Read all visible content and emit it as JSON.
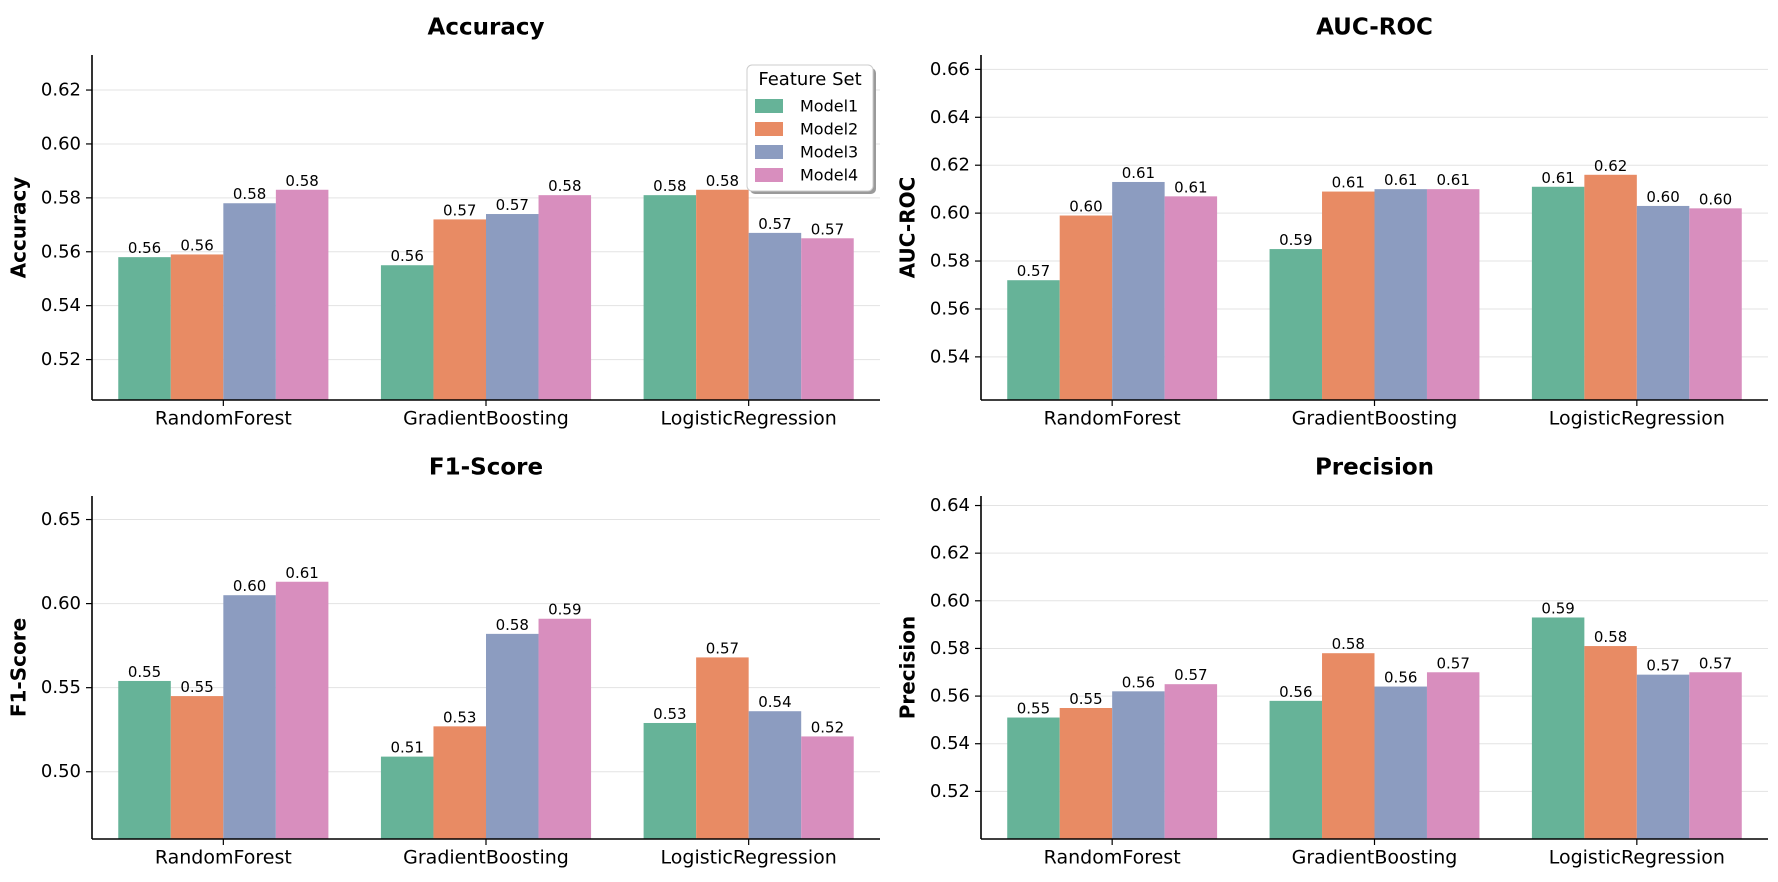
{
  "figure": {
    "legend": {
      "title": "Feature Set",
      "placement": "upper-right of first panel",
      "entries": [
        "Model1",
        "Model2",
        "Model3",
        "Model4"
      ]
    },
    "colors": [
      "#66b398",
      "#e88b64",
      "#8c9cc0",
      "#d88ebe"
    ]
  },
  "chart_data": [
    {
      "type": "bar",
      "title": "Accuracy",
      "xlabel": "",
      "ylabel": "Accuracy",
      "categories": [
        "RandomForest",
        "GradientBoosting",
        "LogisticRegression"
      ],
      "ylim": [
        0.505,
        0.633
      ],
      "yticks": [
        0.52,
        0.54,
        0.56,
        0.58,
        0.6,
        0.62
      ],
      "grid": true,
      "series": [
        {
          "name": "Model1",
          "values": [
            0.558,
            0.555,
            0.581
          ],
          "labels": [
            "0.56",
            "0.56",
            "0.58"
          ]
        },
        {
          "name": "Model2",
          "values": [
            0.559,
            0.572,
            0.583
          ],
          "labels": [
            "0.56",
            "0.57",
            "0.58"
          ]
        },
        {
          "name": "Model3",
          "values": [
            0.578,
            0.574,
            0.567
          ],
          "labels": [
            "0.58",
            "0.57",
            "0.57"
          ]
        },
        {
          "name": "Model4",
          "values": [
            0.583,
            0.581,
            0.565
          ],
          "labels": [
            "0.58",
            "0.58",
            "0.57"
          ]
        }
      ]
    },
    {
      "type": "bar",
      "title": "AUC-ROC",
      "xlabel": "",
      "ylabel": "AUC-ROC",
      "categories": [
        "RandomForest",
        "GradientBoosting",
        "LogisticRegression"
      ],
      "ylim": [
        0.522,
        0.666
      ],
      "yticks": [
        0.54,
        0.56,
        0.58,
        0.6,
        0.62,
        0.64,
        0.66
      ],
      "grid": true,
      "series": [
        {
          "name": "Model1",
          "values": [
            0.572,
            0.585,
            0.611
          ],
          "labels": [
            "0.57",
            "0.59",
            "0.61"
          ]
        },
        {
          "name": "Model2",
          "values": [
            0.599,
            0.609,
            0.616
          ],
          "labels": [
            "0.60",
            "0.61",
            "0.62"
          ]
        },
        {
          "name": "Model3",
          "values": [
            0.613,
            0.61,
            0.603
          ],
          "labels": [
            "0.61",
            "0.61",
            "0.60"
          ]
        },
        {
          "name": "Model4",
          "values": [
            0.607,
            0.61,
            0.602
          ],
          "labels": [
            "0.61",
            "0.61",
            "0.60"
          ]
        }
      ]
    },
    {
      "type": "bar",
      "title": "F1-Score",
      "xlabel": "",
      "ylabel": "F1-Score",
      "categories": [
        "RandomForest",
        "GradientBoosting",
        "LogisticRegression"
      ],
      "ylim": [
        0.46,
        0.664
      ],
      "yticks": [
        0.5,
        0.55,
        0.6,
        0.65
      ],
      "yticklabels": [
        "0.50",
        "0.55",
        "0.60",
        "0.65"
      ],
      "grid": true,
      "series": [
        {
          "name": "Model1",
          "values": [
            0.554,
            0.509,
            0.529
          ],
          "labels": [
            "0.55",
            "0.51",
            "0.53"
          ]
        },
        {
          "name": "Model2",
          "values": [
            0.545,
            0.527,
            0.568
          ],
          "labels": [
            "0.55",
            "0.53",
            "0.57"
          ]
        },
        {
          "name": "Model3",
          "values": [
            0.605,
            0.582,
            0.536
          ],
          "labels": [
            "0.60",
            "0.58",
            "0.54"
          ]
        },
        {
          "name": "Model4",
          "values": [
            0.613,
            0.591,
            0.521
          ],
          "labels": [
            "0.61",
            "0.59",
            "0.52"
          ]
        }
      ]
    },
    {
      "type": "bar",
      "title": "Precision",
      "xlabel": "",
      "ylabel": "Precision",
      "categories": [
        "RandomForest",
        "GradientBoosting",
        "LogisticRegression"
      ],
      "ylim": [
        0.5,
        0.644
      ],
      "yticks": [
        0.52,
        0.54,
        0.56,
        0.58,
        0.6,
        0.62,
        0.64
      ],
      "grid": true,
      "series": [
        {
          "name": "Model1",
          "values": [
            0.551,
            0.558,
            0.593
          ],
          "labels": [
            "0.55",
            "0.56",
            "0.59"
          ]
        },
        {
          "name": "Model2",
          "values": [
            0.555,
            0.578,
            0.581
          ],
          "labels": [
            "0.55",
            "0.58",
            "0.58"
          ]
        },
        {
          "name": "Model3",
          "values": [
            0.562,
            0.564,
            0.569
          ],
          "labels": [
            "0.56",
            "0.56",
            "0.57"
          ]
        },
        {
          "name": "Model4",
          "values": [
            0.565,
            0.57,
            0.57
          ],
          "labels": [
            "0.57",
            "0.57",
            "0.57"
          ]
        }
      ]
    }
  ]
}
